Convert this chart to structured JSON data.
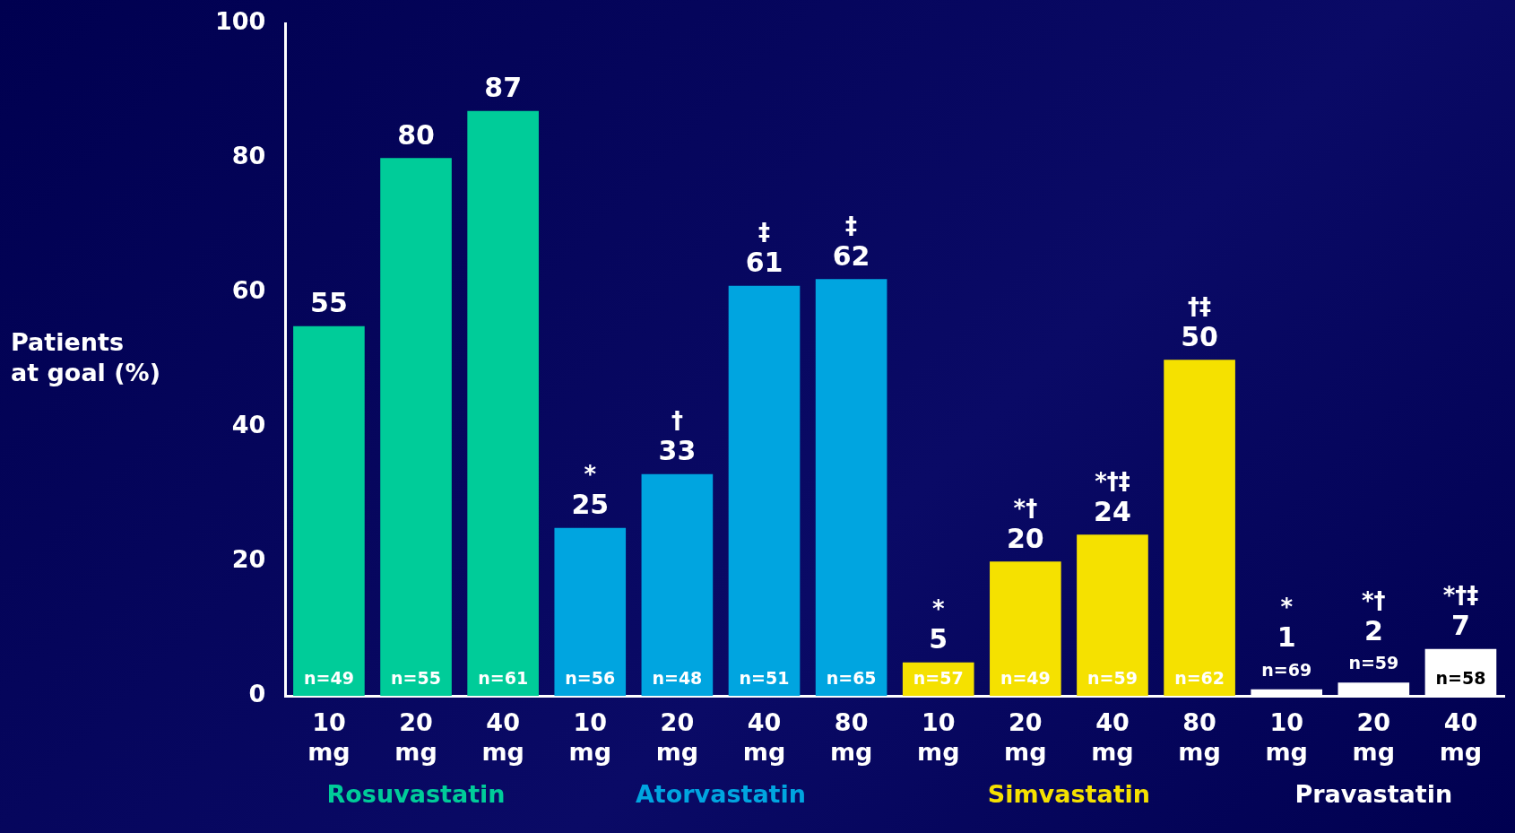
{
  "chart_data": {
    "type": "bar",
    "ylabel": "Patients\nat goal (%)",
    "categories": [
      "10 mg",
      "20 mg",
      "40 mg",
      "10 mg",
      "20 mg",
      "40 mg",
      "80 mg",
      "10 mg",
      "20 mg",
      "40 mg",
      "80 mg",
      "10 mg",
      "20 mg",
      "40 mg"
    ],
    "series": [
      {
        "name": "Rosuvastatin",
        "color": "#00cc99",
        "values": [
          55,
          80,
          87,
          null,
          null,
          null,
          null,
          null,
          null,
          null,
          null,
          null,
          null,
          null
        ]
      },
      {
        "name": "Atorvastatin",
        "color": "#00a5e0",
        "values": [
          null,
          null,
          null,
          25,
          33,
          61,
          62,
          null,
          null,
          null,
          null,
          null,
          null,
          null
        ]
      },
      {
        "name": "Simvastatin",
        "color": "#f5e100",
        "values": [
          null,
          null,
          null,
          null,
          null,
          null,
          null,
          5,
          20,
          24,
          50,
          null,
          null,
          null
        ]
      },
      {
        "name": "Pravastatin",
        "color": "#ffffff",
        "values": [
          null,
          null,
          null,
          null,
          null,
          null,
          null,
          null,
          null,
          null,
          null,
          1,
          2,
          7
        ]
      }
    ],
    "ylim": [
      0,
      100
    ],
    "yticks": [
      0,
      20,
      40,
      60,
      80,
      100
    ],
    "grid": false,
    "legend": false,
    "data_labels": true,
    "annotations": [
      "n=49",
      "n=55",
      "n=61",
      "n=56",
      "n=48",
      "n=51",
      "n=65",
      "n=57",
      "n=49",
      "n=59",
      "n=62",
      "n=69",
      "n=59",
      "n=58",
      "*",
      "†",
      "‡",
      "‡",
      "*",
      "*†",
      "*†‡",
      "†‡",
      "*",
      "*†",
      "*†‡"
    ]
  }
}
